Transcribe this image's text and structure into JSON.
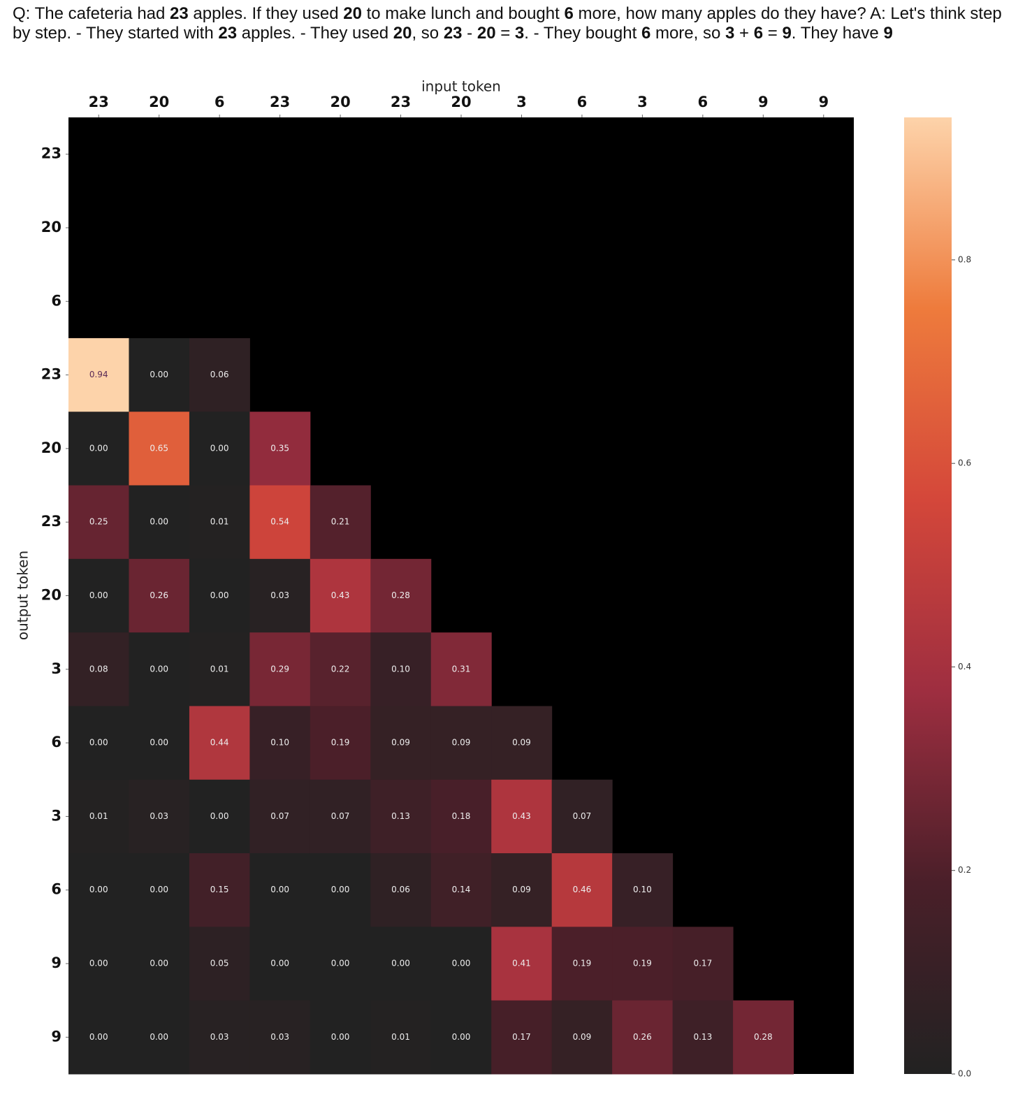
{
  "chart_data": {
    "type": "heatmap",
    "title": [
      "Q: The cafeteria had ",
      "23",
      " apples. If they used ",
      "20",
      " to make lunch and bought ",
      "6",
      " more, how many apples do they have? A: Let's think step by step. - They started with ",
      "23",
      " apples. - They used ",
      "20",
      ", so ",
      "23",
      " - ",
      "20",
      " = ",
      "3",
      ". - They bought ",
      "6",
      " more, so ",
      "3",
      " + ",
      "6",
      " = ",
      "9",
      ". They have ",
      "9"
    ],
    "xlabel": "input token",
    "ylabel": "output token",
    "x_categories": [
      "23",
      "20",
      "6",
      "23",
      "20",
      "23",
      "20",
      "3",
      "6",
      "3",
      "6",
      "9",
      "9"
    ],
    "y_categories": [
      "23",
      "20",
      "6",
      "23",
      "20",
      "23",
      "20",
      "3",
      "6",
      "3",
      "6",
      "9",
      "9"
    ],
    "values": [
      [
        null,
        null,
        null,
        null,
        null,
        null,
        null,
        null,
        null,
        null,
        null,
        null,
        null
      ],
      [
        null,
        null,
        null,
        null,
        null,
        null,
        null,
        null,
        null,
        null,
        null,
        null,
        null
      ],
      [
        null,
        null,
        null,
        null,
        null,
        null,
        null,
        null,
        null,
        null,
        null,
        null,
        null
      ],
      [
        0.94,
        0,
        0.06,
        null,
        null,
        null,
        null,
        null,
        null,
        null,
        null,
        null,
        null
      ],
      [
        0,
        0.65,
        0,
        0.35,
        null,
        null,
        null,
        null,
        null,
        null,
        null,
        null,
        null
      ],
      [
        0.25,
        0,
        0.01,
        0.54,
        0.21,
        null,
        null,
        null,
        null,
        null,
        null,
        null,
        null
      ],
      [
        0,
        0.26,
        0,
        0.03,
        0.43,
        0.28,
        null,
        null,
        null,
        null,
        null,
        null,
        null
      ],
      [
        0.08,
        0,
        0.01,
        0.29,
        0.22,
        0.1,
        0.31,
        null,
        null,
        null,
        null,
        null,
        null
      ],
      [
        0,
        0,
        0.44,
        0.1,
        0.19,
        0.09,
        0.09,
        0.09,
        null,
        null,
        null,
        null,
        null
      ],
      [
        0.01,
        0.03,
        0,
        0.07,
        0.07,
        0.13,
        0.18,
        0.43,
        0.07,
        null,
        null,
        null,
        null
      ],
      [
        0,
        0,
        0.15,
        0,
        0,
        0.06,
        0.14,
        0.09,
        0.46,
        0.1,
        null,
        null,
        null
      ],
      [
        0,
        0,
        0.05,
        0,
        0,
        0,
        0,
        0.41,
        0.19,
        0.19,
        0.17,
        null,
        null
      ],
      [
        0,
        0,
        0.03,
        0.03,
        0,
        0.01,
        0,
        0.17,
        0.09,
        0.26,
        0.13,
        0.28,
        null
      ]
    ],
    "value_labels": [
      [
        null,
        null,
        null,
        null,
        null,
        null,
        null,
        null,
        null,
        null,
        null,
        null,
        null
      ],
      [
        null,
        null,
        null,
        null,
        null,
        null,
        null,
        null,
        null,
        null,
        null,
        null,
        null
      ],
      [
        null,
        null,
        null,
        null,
        null,
        null,
        null,
        null,
        null,
        null,
        null,
        null,
        null
      ],
      [
        "0.94",
        "0.00",
        "0.06",
        null,
        null,
        null,
        null,
        null,
        null,
        null,
        null,
        null,
        null
      ],
      [
        "0.00",
        "0.65",
        "0.00",
        "0.35",
        null,
        null,
        null,
        null,
        null,
        null,
        null,
        null,
        null
      ],
      [
        "0.25",
        "0.00",
        "0.01",
        "0.54",
        "0.21",
        null,
        null,
        null,
        null,
        null,
        null,
        null,
        null
      ],
      [
        "0.00",
        "0.26",
        "0.00",
        "0.03",
        "0.43",
        "0.28",
        null,
        null,
        null,
        null,
        null,
        null,
        null
      ],
      [
        "0.08",
        "0.00",
        "0.01",
        "0.29",
        "0.22",
        "0.10",
        "0.31",
        null,
        null,
        null,
        null,
        null,
        null
      ],
      [
        "0.00",
        "0.00",
        "0.44",
        "0.10",
        "0.19",
        "0.09",
        "0.09",
        "0.09",
        null,
        null,
        null,
        null,
        null
      ],
      [
        "0.01",
        "0.03",
        "0.00",
        "0.07",
        "0.07",
        "0.13",
        "0.18",
        "0.43",
        "0.07",
        null,
        null,
        null,
        null
      ],
      [
        "0.00",
        "0.00",
        "0.15",
        "0.00",
        "0.00",
        "0.06",
        "0.14",
        "0.09",
        "0.46",
        "0.10",
        null,
        null,
        null
      ],
      [
        "0.00",
        "0.00",
        "0.05",
        "0.00",
        "0.00",
        "0.00",
        "0.00",
        "0.41",
        "0.19",
        "0.19",
        "0.17",
        null,
        null
      ],
      [
        "0.00",
        "0.00",
        "0.03",
        "0.03",
        "0.00",
        "0.01",
        "0.00",
        "0.17",
        "0.09",
        "0.26",
        "0.13",
        "0.28",
        null
      ]
    ],
    "zlim": [
      0,
      0.94
    ],
    "zticks": [
      {
        "value": 0,
        "label": "0.0"
      },
      0.2,
      0.4,
      0.6,
      0.8
    ],
    "colormap": [
      "#222222",
      "#4a1f29",
      "#9e2e40",
      "#d4473a",
      "#ee7b3c",
      "#fdd3aa"
    ],
    "mask_color": "#000000"
  }
}
